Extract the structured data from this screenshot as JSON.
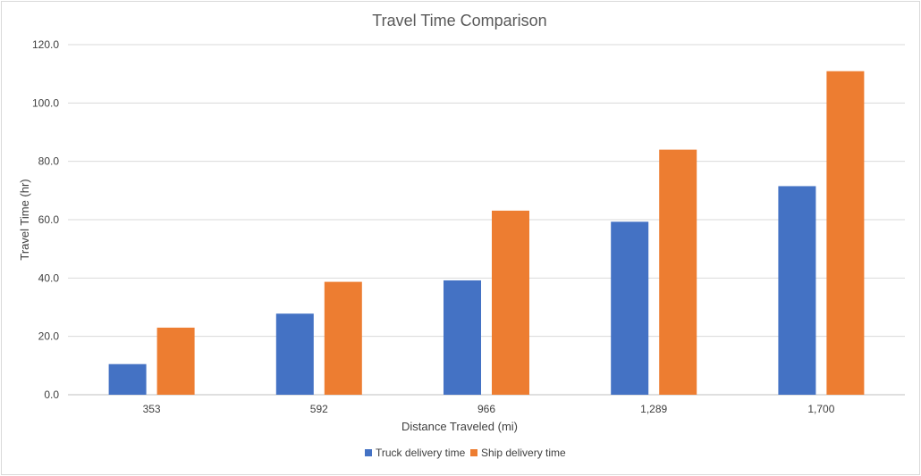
{
  "chart_data": {
    "type": "bar",
    "title": "Travel Time Comparison",
    "xlabel": "Distance Traveled (mi)",
    "ylabel": "Travel Time (hr)",
    "categories": [
      "353",
      "592",
      "966",
      "1,289",
      "1,700"
    ],
    "series": [
      {
        "name": "Truck delivery time",
        "color": "#4472C4",
        "values": [
          10.5,
          27.8,
          39.2,
          59.3,
          71.5
        ]
      },
      {
        "name": "Ship delivery time",
        "color": "#ED7D31",
        "values": [
          23.0,
          38.7,
          63.1,
          84.0,
          110.9
        ]
      }
    ],
    "ylim": [
      0,
      120
    ],
    "yticks": [
      "0.0",
      "20.0",
      "40.0",
      "60.0",
      "80.0",
      "100.0",
      "120.0"
    ],
    "ytick_values": [
      0,
      20,
      40,
      60,
      80,
      100,
      120
    ],
    "grid": true,
    "legend_position": "bottom"
  }
}
